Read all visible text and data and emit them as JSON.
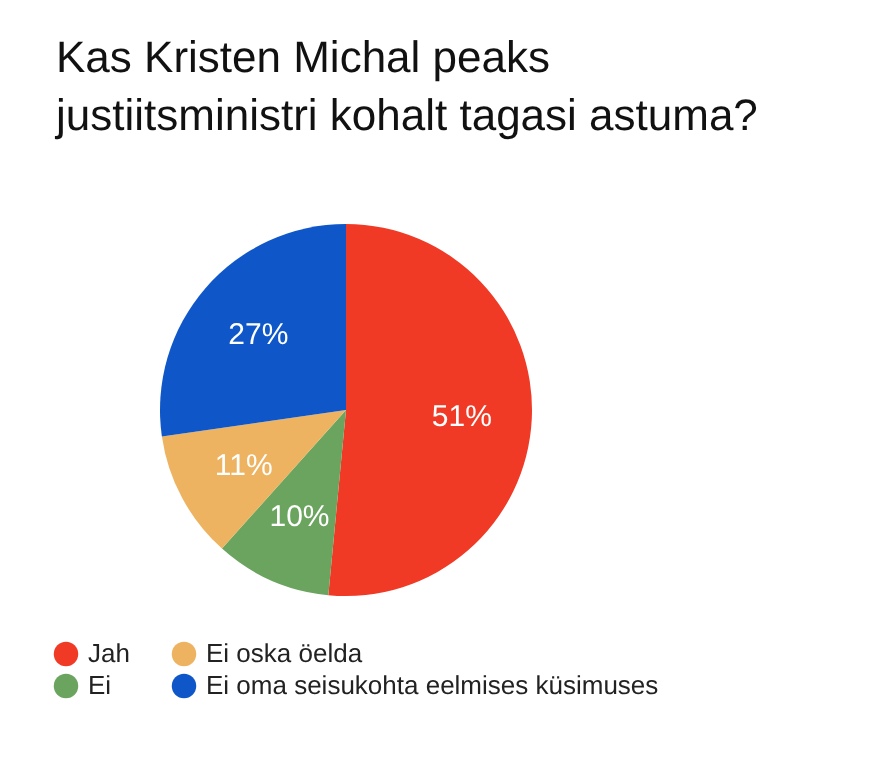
{
  "chart_data": {
    "type": "pie",
    "title": "Kas Kristen Michal peaks justiitsministri kohalt tagasi astuma?",
    "categories": [
      "Jah",
      "Ei",
      "Ei oska öelda",
      "Ei oma seisukohta eelmises küsimuses"
    ],
    "values": [
      51,
      10,
      11,
      27
    ],
    "colors": [
      "#f03a25",
      "#6aa45e",
      "#edb360",
      "#0f57c8"
    ],
    "value_labels": [
      "51%",
      "10%",
      "11%",
      "27%"
    ],
    "legend": "bottom"
  }
}
